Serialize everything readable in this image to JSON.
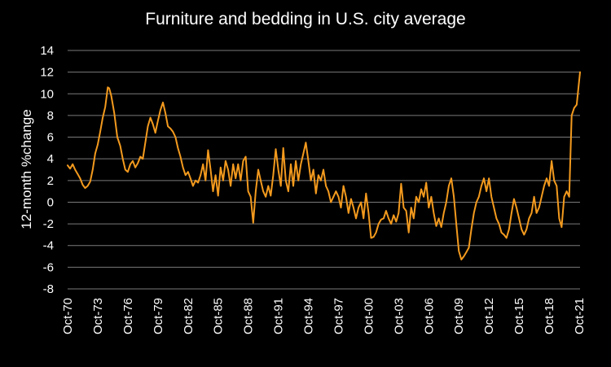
{
  "chart_data": {
    "type": "line",
    "title": "Furniture and bedding in U.S. city average",
    "ylabel": "12-month %change",
    "xlabel": "",
    "ylim": [
      -8,
      14
    ],
    "yticks": [
      -8,
      -6,
      -4,
      -2,
      0,
      2,
      4,
      6,
      8,
      10,
      12,
      14
    ],
    "xlim": [
      1970.75,
      2021.833
    ],
    "xticks": [
      {
        "label": "Oct-70",
        "x": 1970.75
      },
      {
        "label": "Oct-73",
        "x": 1973.75
      },
      {
        "label": "Oct-76",
        "x": 1976.75
      },
      {
        "label": "Oct-79",
        "x": 1979.75
      },
      {
        "label": "Oct-82",
        "x": 1982.75
      },
      {
        "label": "Oct-85",
        "x": 1985.75
      },
      {
        "label": "Oct-88",
        "x": 1988.75
      },
      {
        "label": "Oct-91",
        "x": 1991.75
      },
      {
        "label": "Oct-94",
        "x": 1994.75
      },
      {
        "label": "Oct-97",
        "x": 1997.75
      },
      {
        "label": "Oct-00",
        "x": 2000.75
      },
      {
        "label": "Oct-03",
        "x": 2003.75
      },
      {
        "label": "Oct-06",
        "x": 2006.75
      },
      {
        "label": "Oct-09",
        "x": 2009.75
      },
      {
        "label": "Oct-12",
        "x": 2012.75
      },
      {
        "label": "Oct-15",
        "x": 2015.75
      },
      {
        "label": "Oct-18",
        "x": 2018.75
      },
      {
        "label": "Oct-21",
        "x": 2021.75
      }
    ],
    "grid": true,
    "legend": "none",
    "colors": {
      "background": "#000000",
      "line": "#f39a1e",
      "text": "#ffffff",
      "grid": "#7a7a7a"
    },
    "series": [
      {
        "points": [
          [
            1970.75,
            3.4
          ],
          [
            1971.0,
            3.1
          ],
          [
            1971.25,
            3.5
          ],
          [
            1971.5,
            3.0
          ],
          [
            1971.75,
            2.6
          ],
          [
            1972.0,
            2.2
          ],
          [
            1972.25,
            1.6
          ],
          [
            1972.5,
            1.3
          ],
          [
            1972.75,
            1.5
          ],
          [
            1973.0,
            1.9
          ],
          [
            1973.25,
            3.0
          ],
          [
            1973.5,
            4.5
          ],
          [
            1973.75,
            5.3
          ],
          [
            1974.0,
            6.5
          ],
          [
            1974.25,
            7.8
          ],
          [
            1974.5,
            8.8
          ],
          [
            1974.75,
            10.6
          ],
          [
            1974.9,
            10.5
          ],
          [
            1975.1,
            9.8
          ],
          [
            1975.4,
            8.2
          ],
          [
            1975.7,
            6.0
          ],
          [
            1976.0,
            5.2
          ],
          [
            1976.25,
            4.0
          ],
          [
            1976.5,
            3.0
          ],
          [
            1976.75,
            2.8
          ],
          [
            1977.0,
            3.5
          ],
          [
            1977.25,
            3.8
          ],
          [
            1977.5,
            3.2
          ],
          [
            1977.75,
            3.6
          ],
          [
            1978.0,
            4.2
          ],
          [
            1978.25,
            4.0
          ],
          [
            1978.5,
            5.5
          ],
          [
            1978.75,
            7.0
          ],
          [
            1979.0,
            7.8
          ],
          [
            1979.25,
            7.2
          ],
          [
            1979.5,
            6.4
          ],
          [
            1979.75,
            7.5
          ],
          [
            1980.0,
            8.5
          ],
          [
            1980.25,
            9.2
          ],
          [
            1980.5,
            8.2
          ],
          [
            1980.75,
            7.0
          ],
          [
            1981.0,
            6.8
          ],
          [
            1981.25,
            6.5
          ],
          [
            1981.5,
            6.0
          ],
          [
            1981.75,
            5.0
          ],
          [
            1982.0,
            4.2
          ],
          [
            1982.25,
            3.2
          ],
          [
            1982.5,
            2.5
          ],
          [
            1982.75,
            2.8
          ],
          [
            1983.0,
            2.2
          ],
          [
            1983.25,
            1.5
          ],
          [
            1983.5,
            2.0
          ],
          [
            1983.75,
            1.8
          ],
          [
            1984.0,
            2.5
          ],
          [
            1984.25,
            3.5
          ],
          [
            1984.5,
            2.0
          ],
          [
            1984.75,
            4.8
          ],
          [
            1985.0,
            3.0
          ],
          [
            1985.25,
            1.0
          ],
          [
            1985.5,
            2.5
          ],
          [
            1985.75,
            0.6
          ],
          [
            1986.0,
            3.2
          ],
          [
            1986.25,
            2.0
          ],
          [
            1986.5,
            3.8
          ],
          [
            1986.75,
            3.0
          ],
          [
            1987.0,
            1.5
          ],
          [
            1987.25,
            3.5
          ],
          [
            1987.5,
            2.2
          ],
          [
            1987.75,
            3.5
          ],
          [
            1988.0,
            2.0
          ],
          [
            1988.25,
            3.8
          ],
          [
            1988.5,
            4.2
          ],
          [
            1988.75,
            1.0
          ],
          [
            1989.0,
            0.5
          ],
          [
            1989.25,
            -1.9
          ],
          [
            1989.5,
            1.0
          ],
          [
            1989.75,
            3.0
          ],
          [
            1990.0,
            2.0
          ],
          [
            1990.25,
            1.0
          ],
          [
            1990.5,
            0.5
          ],
          [
            1990.75,
            1.5
          ],
          [
            1991.0,
            0.6
          ],
          [
            1991.25,
            2.5
          ],
          [
            1991.5,
            4.9
          ],
          [
            1991.75,
            3.0
          ],
          [
            1992.0,
            1.5
          ],
          [
            1992.25,
            5.0
          ],
          [
            1992.5,
            2.0
          ],
          [
            1992.75,
            1.0
          ],
          [
            1993.0,
            3.5
          ],
          [
            1993.25,
            1.5
          ],
          [
            1993.5,
            3.8
          ],
          [
            1993.75,
            2.0
          ],
          [
            1994.0,
            3.5
          ],
          [
            1994.25,
            4.5
          ],
          [
            1994.5,
            5.5
          ],
          [
            1994.75,
            3.8
          ],
          [
            1995.0,
            2.0
          ],
          [
            1995.25,
            3.0
          ],
          [
            1995.5,
            0.8
          ],
          [
            1995.75,
            2.5
          ],
          [
            1996.0,
            2.0
          ],
          [
            1996.25,
            3.0
          ],
          [
            1996.5,
            1.5
          ],
          [
            1996.75,
            1.0
          ],
          [
            1997.0,
            0.0
          ],
          [
            1997.25,
            0.5
          ],
          [
            1997.5,
            1.0
          ],
          [
            1997.75,
            0.5
          ],
          [
            1998.0,
            -0.5
          ],
          [
            1998.25,
            1.5
          ],
          [
            1998.5,
            0.5
          ],
          [
            1998.75,
            -1.0
          ],
          [
            1999.0,
            0.3
          ],
          [
            1999.25,
            -0.5
          ],
          [
            1999.5,
            -1.5
          ],
          [
            1999.75,
            -0.5
          ],
          [
            2000.0,
            0.0
          ],
          [
            2000.25,
            -1.5
          ],
          [
            2000.5,
            0.8
          ],
          [
            2000.75,
            -1.0
          ],
          [
            2001.0,
            -3.3
          ],
          [
            2001.25,
            -3.2
          ],
          [
            2001.5,
            -2.8
          ],
          [
            2001.75,
            -2.0
          ],
          [
            2002.0,
            -1.6
          ],
          [
            2002.25,
            -1.5
          ],
          [
            2002.5,
            -0.8
          ],
          [
            2002.75,
            -1.5
          ],
          [
            2003.0,
            -2.0
          ],
          [
            2003.25,
            -1.2
          ],
          [
            2003.5,
            -1.8
          ],
          [
            2003.75,
            -1.0
          ],
          [
            2004.0,
            1.7
          ],
          [
            2004.25,
            -0.5
          ],
          [
            2004.5,
            -0.8
          ],
          [
            2004.75,
            -2.8
          ],
          [
            2005.0,
            -0.5
          ],
          [
            2005.25,
            -1.5
          ],
          [
            2005.5,
            0.5
          ],
          [
            2005.75,
            0.0
          ],
          [
            2006.0,
            1.2
          ],
          [
            2006.25,
            0.5
          ],
          [
            2006.5,
            1.8
          ],
          [
            2006.75,
            -0.5
          ],
          [
            2007.0,
            0.5
          ],
          [
            2007.25,
            -1.0
          ],
          [
            2007.5,
            -2.2
          ],
          [
            2007.75,
            -1.5
          ],
          [
            2008.0,
            -2.3
          ],
          [
            2008.25,
            -1.0
          ],
          [
            2008.5,
            0.0
          ],
          [
            2008.75,
            1.5
          ],
          [
            2009.0,
            2.2
          ],
          [
            2009.25,
            0.5
          ],
          [
            2009.5,
            -2.0
          ],
          [
            2009.75,
            -4.5
          ],
          [
            2010.0,
            -5.3
          ],
          [
            2010.25,
            -5.0
          ],
          [
            2010.5,
            -4.6
          ],
          [
            2010.75,
            -4.2
          ],
          [
            2011.0,
            -2.5
          ],
          [
            2011.25,
            -1.0
          ],
          [
            2011.5,
            0.0
          ],
          [
            2011.75,
            0.5
          ],
          [
            2012.0,
            1.5
          ],
          [
            2012.25,
            2.2
          ],
          [
            2012.5,
            1.0
          ],
          [
            2012.75,
            2.2
          ],
          [
            2013.0,
            0.5
          ],
          [
            2013.25,
            -0.5
          ],
          [
            2013.5,
            -1.5
          ],
          [
            2013.75,
            -2.0
          ],
          [
            2014.0,
            -2.8
          ],
          [
            2014.25,
            -3.0
          ],
          [
            2014.5,
            -3.3
          ],
          [
            2014.75,
            -2.5
          ],
          [
            2015.0,
            -1.0
          ],
          [
            2015.25,
            0.3
          ],
          [
            2015.5,
            -0.5
          ],
          [
            2015.75,
            -1.5
          ],
          [
            2016.0,
            -2.5
          ],
          [
            2016.25,
            -3.0
          ],
          [
            2016.5,
            -2.5
          ],
          [
            2016.75,
            -1.5
          ],
          [
            2017.0,
            -1.0
          ],
          [
            2017.25,
            0.5
          ],
          [
            2017.5,
            -1.0
          ],
          [
            2017.75,
            -0.5
          ],
          [
            2018.0,
            0.5
          ],
          [
            2018.25,
            1.5
          ],
          [
            2018.5,
            2.2
          ],
          [
            2018.75,
            1.5
          ],
          [
            2019.0,
            3.8
          ],
          [
            2019.25,
            2.0
          ],
          [
            2019.5,
            1.5
          ],
          [
            2019.75,
            -1.5
          ],
          [
            2020.0,
            -2.3
          ],
          [
            2020.25,
            0.5
          ],
          [
            2020.5,
            1.0
          ],
          [
            2020.75,
            0.5
          ],
          [
            2021.0,
            8.0
          ],
          [
            2021.25,
            8.7
          ],
          [
            2021.5,
            9.0
          ],
          [
            2021.833,
            12.0
          ]
        ]
      }
    ]
  }
}
